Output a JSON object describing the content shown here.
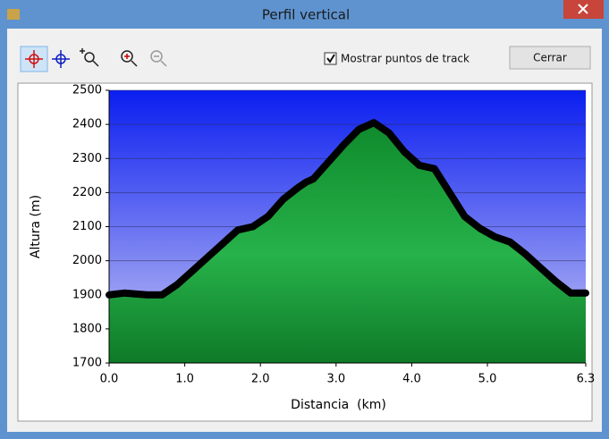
{
  "window": {
    "title": "Perfil vertical"
  },
  "toolbar": {
    "checkbox_label": "Mostrar puntos de track",
    "checked": true,
    "button": "Cerrar"
  },
  "chart_data": {
    "type": "area",
    "x_label": "Distancia  (km)",
    "y_label": "Altura (m)",
    "x": [
      0,
      0.2,
      0.5,
      0.7,
      0.9,
      1.1,
      1.3,
      1.5,
      1.7,
      1.9,
      2.1,
      2.3,
      2.5,
      2.6,
      2.7,
      2.9,
      3.1,
      3.3,
      3.5,
      3.7,
      3.9,
      4.1,
      4.3,
      4.5,
      4.7,
      4.9,
      5.1,
      5.3,
      5.5,
      5.7,
      5.9,
      6.1,
      6.3
    ],
    "values": [
      1900,
      1905,
      1900,
      1900,
      1930,
      1970,
      2010,
      2050,
      2090,
      2100,
      2130,
      2180,
      2215,
      2230,
      2240,
      2290,
      2340,
      2385,
      2405,
      2375,
      2320,
      2280,
      2270,
      2200,
      2130,
      2095,
      2070,
      2055,
      2020,
      1980,
      1940,
      1905,
      1905
    ],
    "color": "#1faa3c",
    "line_color": "#000000",
    "xlim": [
      0,
      6.3
    ],
    "xticks": [
      {
        "value": 0,
        "label": "0.0"
      },
      {
        "value": 1,
        "label": "1.0"
      },
      {
        "value": 2,
        "label": "2.0"
      },
      {
        "value": 3,
        "label": "3.0"
      },
      {
        "value": 4,
        "label": "4.0"
      },
      {
        "value": 5,
        "label": "5.0"
      },
      6.3
    ],
    "ylim": [
      1700,
      2500
    ],
    "yticks": [
      1700,
      1800,
      1900,
      2000,
      2100,
      2200,
      2300,
      2400,
      2500
    ],
    "grid": true
  }
}
